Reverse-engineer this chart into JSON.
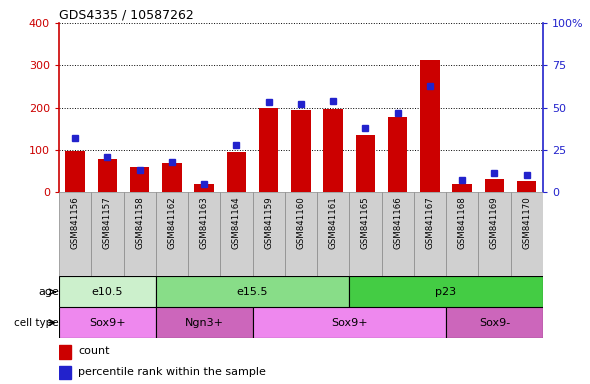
{
  "title": "GDS4335 / 10587262",
  "samples": [
    "GSM841156",
    "GSM841157",
    "GSM841158",
    "GSM841162",
    "GSM841163",
    "GSM841164",
    "GSM841159",
    "GSM841160",
    "GSM841161",
    "GSM841165",
    "GSM841166",
    "GSM841167",
    "GSM841168",
    "GSM841169",
    "GSM841170"
  ],
  "counts": [
    97,
    78,
    60,
    68,
    18,
    95,
    200,
    193,
    197,
    135,
    178,
    312,
    18,
    30,
    25
  ],
  "percentile_ranks": [
    32,
    21,
    13,
    18,
    5,
    28,
    53,
    52,
    54,
    38,
    47,
    63,
    7,
    11,
    10
  ],
  "ylim_left": [
    0,
    400
  ],
  "ylim_right": [
    0,
    100
  ],
  "yticks_left": [
    0,
    100,
    200,
    300,
    400
  ],
  "yticks_right": [
    0,
    25,
    50,
    75,
    100
  ],
  "yticklabels_right": [
    "0",
    "25",
    "50",
    "75",
    "100%"
  ],
  "bar_color": "#cc0000",
  "dot_color": "#2222cc",
  "tick_area_bg": "#d0d0d0",
  "age_groups": [
    {
      "label": "e10.5",
      "start": 0,
      "end": 3,
      "color": "#ccf0cc"
    },
    {
      "label": "e15.5",
      "start": 3,
      "end": 9,
      "color": "#88dd88"
    },
    {
      "label": "p23",
      "start": 9,
      "end": 15,
      "color": "#44cc44"
    }
  ],
  "cell_type_groups": [
    {
      "label": "Sox9+",
      "start": 0,
      "end": 3,
      "color": "#ee88ee"
    },
    {
      "label": "Ngn3+",
      "start": 3,
      "end": 6,
      "color": "#dd66cc"
    },
    {
      "label": "Sox9+",
      "start": 6,
      "end": 12,
      "color": "#ee88ee"
    },
    {
      "label": "Sox9-",
      "start": 12,
      "end": 15,
      "color": "#dd66cc"
    }
  ],
  "legend_count_label": "count",
  "legend_pct_label": "percentile rank within the sample"
}
